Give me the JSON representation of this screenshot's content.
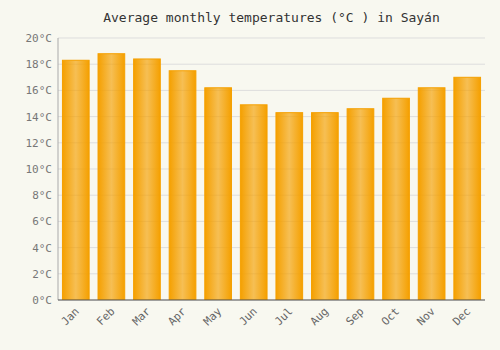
{
  "chart_data": {
    "type": "bar",
    "title": "Average monthly temperatures (°C ) in Sayán",
    "categories": [
      "Jan",
      "Feb",
      "Mar",
      "Apr",
      "May",
      "Jun",
      "Jul",
      "Aug",
      "Sep",
      "Oct",
      "Nov",
      "Dec"
    ],
    "values": [
      18.3,
      18.8,
      18.4,
      17.5,
      16.2,
      14.9,
      14.3,
      14.3,
      14.6,
      15.4,
      16.2,
      17.0
    ],
    "color": "#F5A000",
    "ylim": [
      0,
      20
    ],
    "yticks": [
      {
        "value": 0,
        "label": "0°C"
      },
      {
        "value": 2,
        "label": "2°C"
      },
      {
        "value": 4,
        "label": "4°C"
      },
      {
        "value": 6,
        "label": "6°C"
      },
      {
        "value": 8,
        "label": "8°C"
      },
      {
        "value": 10,
        "label": "10°C"
      },
      {
        "value": 12,
        "label": "12°C"
      },
      {
        "value": 14,
        "label": "14°C"
      },
      {
        "value": 16,
        "label": "16°C"
      },
      {
        "value": 18,
        "label": "18°C"
      },
      {
        "value": 20,
        "label": "20°C"
      }
    ],
    "grid": true
  }
}
